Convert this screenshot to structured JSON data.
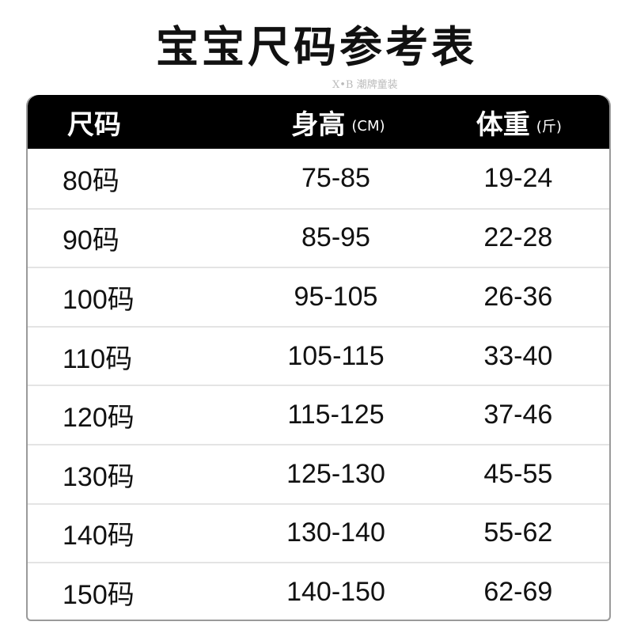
{
  "title": "宝宝尺码参考表",
  "watermark": "X•B 潮牌童装",
  "header": [
    {
      "label": "尺码",
      "unit": ""
    },
    {
      "label": "身高",
      "unit": "(CM)"
    },
    {
      "label": "体重",
      "unit": "(斤)"
    }
  ],
  "rows": [
    [
      "80码",
      "75-85",
      "19-24"
    ],
    [
      "90码",
      "85-95",
      "22-28"
    ],
    [
      "100码",
      "95-105",
      "26-36"
    ],
    [
      "110码",
      "105-115",
      "33-40"
    ],
    [
      "120码",
      "115-125",
      "37-46"
    ],
    [
      "130码",
      "125-130",
      "45-55"
    ],
    [
      "140码",
      "130-140",
      "55-62"
    ],
    [
      "150码",
      "140-150",
      "62-69"
    ]
  ]
}
